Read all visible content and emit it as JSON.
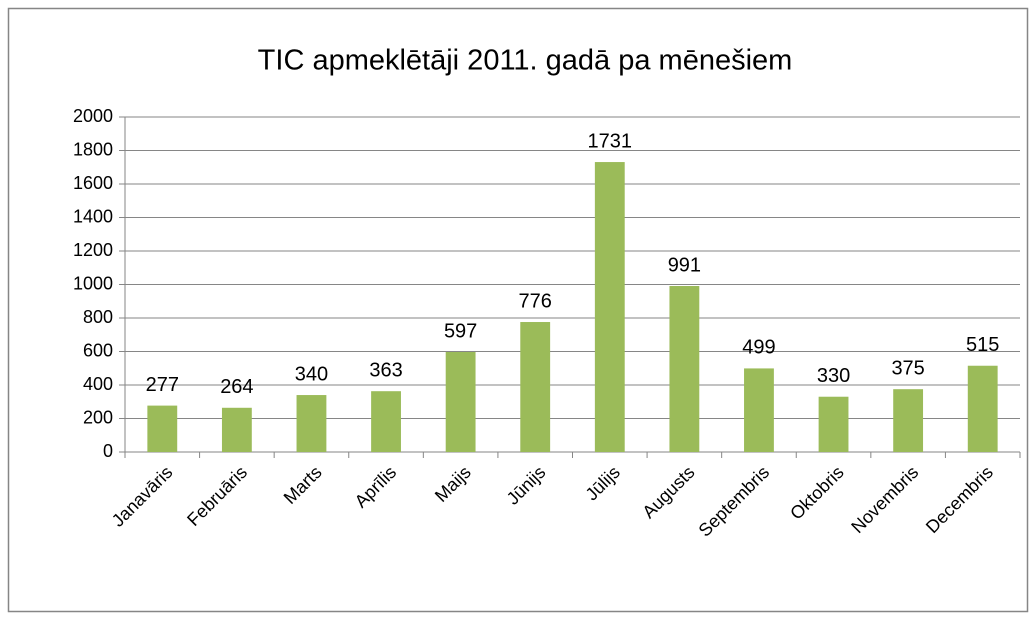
{
  "chart_data": {
    "type": "bar",
    "title": "TIC apmeklētāji 2011. gadā pa mēnešiem",
    "categories": [
      "Janavāris",
      "Februāris",
      "Marts",
      "Aprīlis",
      "Maijs",
      "Jūnijs",
      "Jūlijs",
      "Augusts",
      "Septembris",
      "Oktobris",
      "Novembris",
      "Decembris"
    ],
    "values": [
      277,
      264,
      340,
      363,
      597,
      776,
      1731,
      991,
      499,
      330,
      375,
      515
    ],
    "color": "#9bbb59",
    "ylim": [
      0,
      2000
    ],
    "yticks": [
      0,
      200,
      400,
      600,
      800,
      1000,
      1200,
      1400,
      1600,
      1800,
      2000
    ],
    "grid": true
  }
}
